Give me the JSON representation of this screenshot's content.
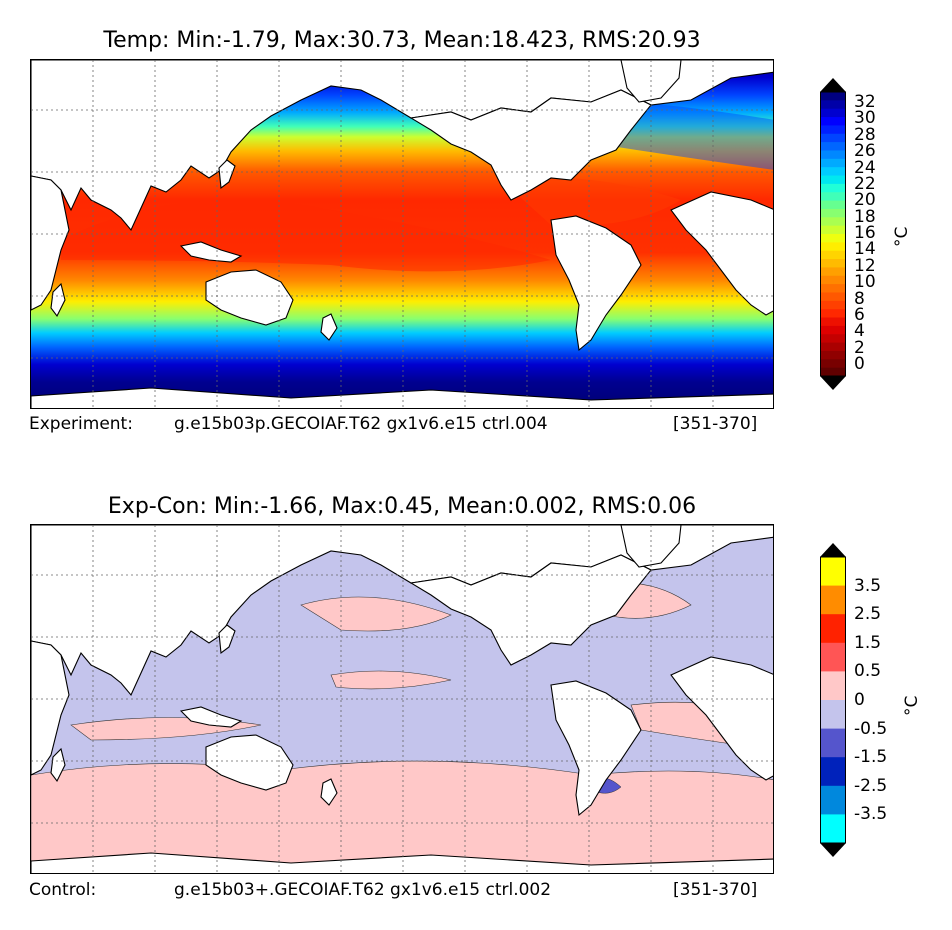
{
  "chart_data": [
    {
      "type": "heatmap",
      "title": "Temp: Min:-1.79, Max:30.73, Mean:18.423, RMS:20.93",
      "min": -1.79,
      "max": 30.73,
      "mean": 18.423,
      "rms": 20.93,
      "caption_left": "Experiment:",
      "caption_run": "g.e15b03p.GECOIAF.T62 gx1v6.e15 ctrl.004",
      "caption_years": "[351-370]",
      "colorbar": {
        "levels": [
          -2,
          0,
          1,
          2,
          3,
          4,
          5,
          6,
          7,
          8,
          9,
          10,
          11,
          12,
          13,
          14,
          15,
          16,
          17,
          18,
          19,
          20,
          21,
          22,
          23,
          24,
          25,
          26,
          27,
          28,
          29,
          30,
          31,
          32,
          33
        ],
        "tick_labels": [
          "0",
          "2",
          "4",
          "6",
          "8",
          "10",
          "12",
          "14",
          "16",
          "18",
          "20",
          "22",
          "24",
          "26",
          "28",
          "30",
          "32"
        ],
        "colors": [
          "#000080",
          "#0000a8",
          "#0000d0",
          "#0000ff",
          "#0020ff",
          "#0044ff",
          "#0066ff",
          "#0088ff",
          "#00aaff",
          "#00ccff",
          "#00e8f0",
          "#20ffd8",
          "#40ffb8",
          "#66ff90",
          "#88ff70",
          "#aaff50",
          "#ccff30",
          "#eeff10",
          "#ffee00",
          "#ffd400",
          "#ffbb00",
          "#ffa000",
          "#ff8800",
          "#ff7000",
          "#ff5800",
          "#ff4000",
          "#ff2800",
          "#ee1000",
          "#dd0000",
          "#c40000",
          "#aa0000",
          "#900000",
          "#780000",
          "#600000"
        ],
        "extend": "both",
        "unit": "°C"
      }
    },
    {
      "type": "heatmap",
      "title": "Exp-Con: Min:-1.66, Max:0.45, Mean:0.002, RMS:0.06",
      "min": -1.66,
      "max": 0.45,
      "mean": 0.002,
      "rms": 0.06,
      "caption_left": "Control:",
      "caption_run": "g.e15b03+.GECOIAF.T62 gx1v6.e15 ctrl.002",
      "caption_years": "[351-370]",
      "colorbar": {
        "tick_labels": [
          "3.5",
          "2.5",
          "1.5",
          "0.5",
          "0",
          "-0.5",
          "-1.5",
          "-2.5",
          "-3.5"
        ],
        "colors": [
          "#ffff00",
          "#ff8c00",
          "#ff2200",
          "#ff5555",
          "#ffc8c8",
          "#c4c4ec",
          "#5555cc",
          "#0022bb",
          "#0088dd",
          "#00ffff"
        ],
        "extend": "both",
        "unit": "°C"
      }
    }
  ],
  "map_colors": {
    "land": "#ffffff",
    "coast": "#000000",
    "grid": "#666666",
    "diff_neg": "#c4c4ec",
    "diff_pos": "#ffc8c8",
    "diff_strong_neg": "#5555cc"
  }
}
